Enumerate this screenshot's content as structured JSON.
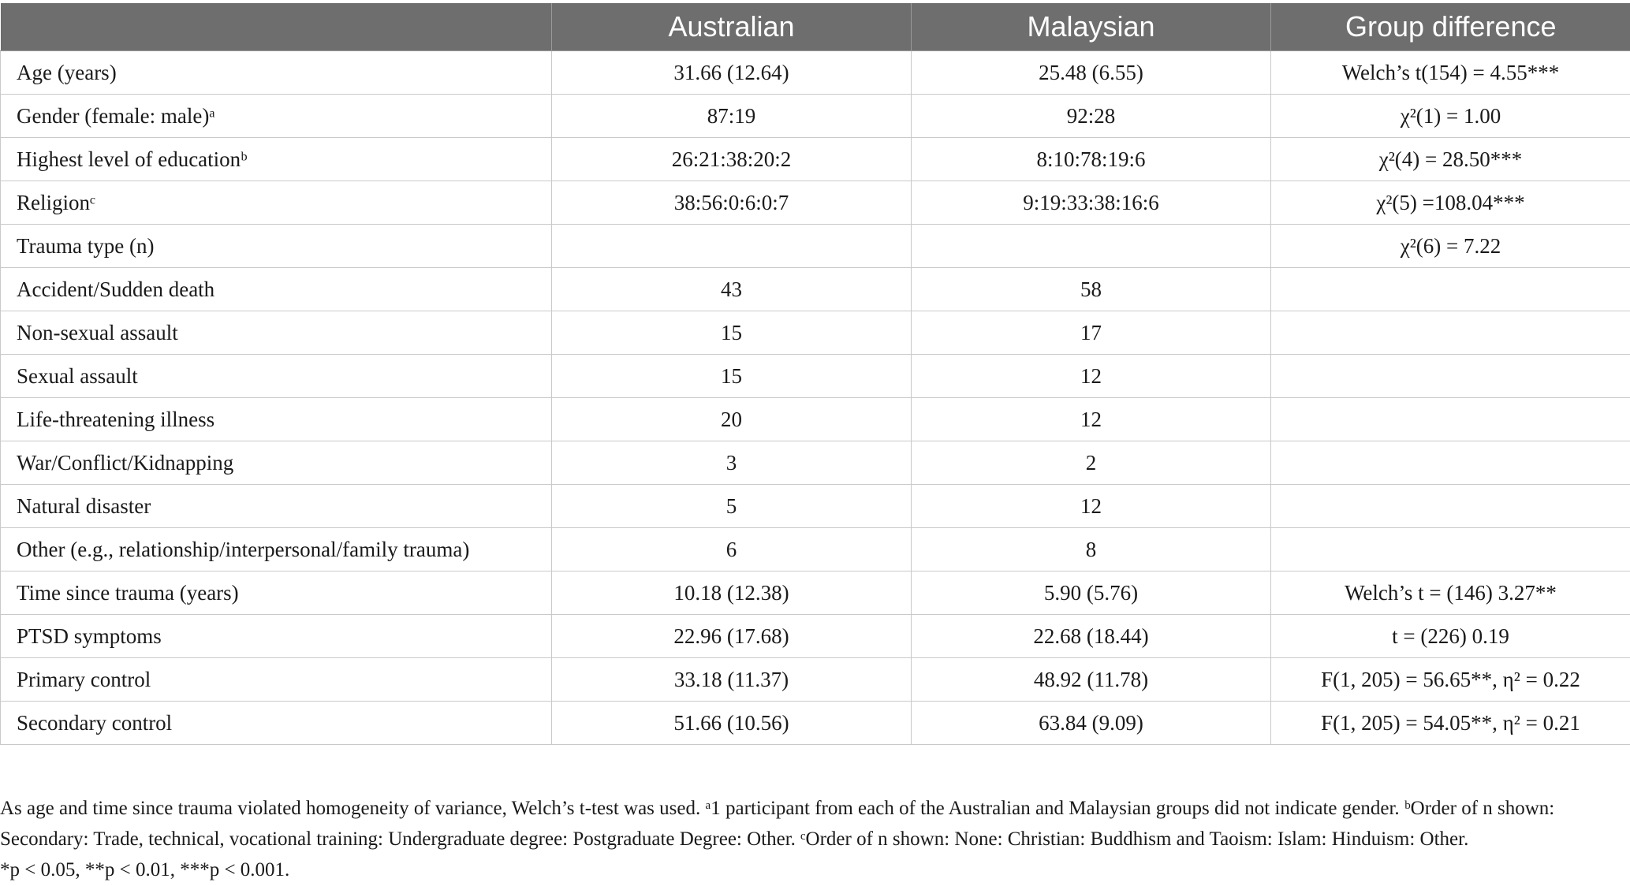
{
  "table": {
    "headers": [
      "",
      "Australian",
      "Malaysian",
      "Group difference"
    ],
    "rows": [
      {
        "label": "Age (years)",
        "australian": "31.66 (12.64)",
        "malaysian": "25.48 (6.55)",
        "group_diff": "Welch’s t(154) = 4.55***"
      },
      {
        "label": "Gender (female: male)ᵃ",
        "australian": "87:19",
        "malaysian": "92:28",
        "group_diff": "χ²(1) = 1.00"
      },
      {
        "label": "Highest level of educationᵇ",
        "australian": "26:21:38:20:2",
        "malaysian": "8:10:78:19:6",
        "group_diff": "χ²(4) = 28.50***"
      },
      {
        "label": "Religionᶜ",
        "australian": "38:56:0:6:0:7",
        "malaysian": "9:19:33:38:16:6",
        "group_diff": "χ²(5) =108.04***"
      },
      {
        "label": "Trauma type (n)",
        "australian": "",
        "malaysian": "",
        "group_diff": "χ²(6) = 7.22"
      },
      {
        "label": "Accident/Sudden death",
        "australian": "43",
        "malaysian": "58",
        "group_diff": ""
      },
      {
        "label": "Non-sexual assault",
        "australian": "15",
        "malaysian": "17",
        "group_diff": ""
      },
      {
        "label": "Sexual assault",
        "australian": "15",
        "malaysian": "12",
        "group_diff": ""
      },
      {
        "label": "Life-threatening illness",
        "australian": "20",
        "malaysian": "12",
        "group_diff": ""
      },
      {
        "label": "War/Conflict/Kidnapping",
        "australian": "3",
        "malaysian": "2",
        "group_diff": ""
      },
      {
        "label": "Natural disaster",
        "australian": "5",
        "malaysian": "12",
        "group_diff": ""
      },
      {
        "label": "Other (e.g., relationship/interpersonal/family trauma)",
        "australian": "6",
        "malaysian": "8",
        "group_diff": ""
      },
      {
        "label": "Time since trauma (years)",
        "australian": "10.18 (12.38)",
        "malaysian": "5.90 (5.76)",
        "group_diff": "Welch’s t = (146) 3.27**"
      },
      {
        "label": "PTSD symptoms",
        "australian": "22.96 (17.68)",
        "malaysian": "22.68 (18.44)",
        "group_diff": "t = (226) 0.19"
      },
      {
        "label": "Primary control",
        "australian": "33.18 (11.37)",
        "malaysian": "48.92 (11.78)",
        "group_diff": "F(1, 205) = 56.65**, η² = 0.22"
      },
      {
        "label": "Secondary control",
        "australian": "51.66 (10.56)",
        "malaysian": "63.84 (9.09)",
        "group_diff": "F(1, 205) = 54.05**, η² = 0.21"
      }
    ]
  },
  "notes": {
    "line1": "As age and time since trauma violated homogeneity of variance, Welch’s t-test was used. ᵃ1 participant from each of the Australian and Malaysian groups did not indicate gender. ᵇOrder of n shown:",
    "line2": "Secondary: Trade, technical, vocational training: Undergraduate degree: Postgraduate Degree: Other. ᶜOrder of n shown: None: Christian: Buddhism and Taoism: Islam: Hinduism: Other.",
    "line3": "*p < 0.05, **p < 0.01, ***p < 0.001."
  }
}
